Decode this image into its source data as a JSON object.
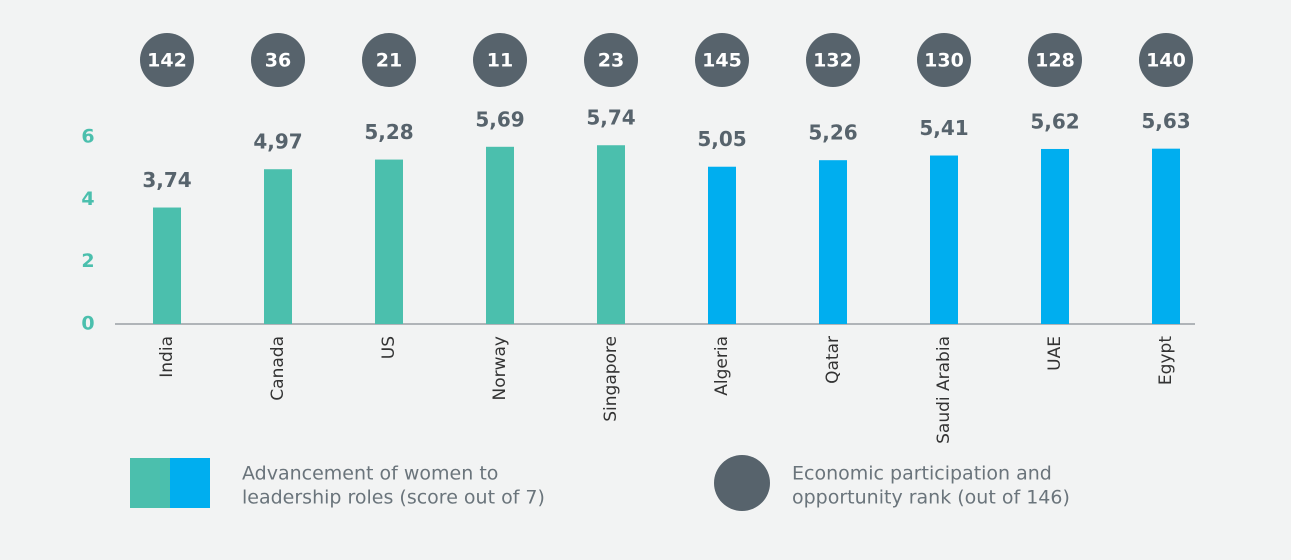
{
  "chart_data": {
    "type": "bar",
    "categories": [
      "India",
      "Canada",
      "US",
      "Norway",
      "Singapore",
      "Algeria",
      "Qatar",
      "Saudi Arabia",
      "UAE",
      "Egypt"
    ],
    "values": [
      3.74,
      4.97,
      5.28,
      5.69,
      5.74,
      5.05,
      5.26,
      5.41,
      5.62,
      5.63
    ],
    "value_labels": [
      "3,74",
      "4,97",
      "5,28",
      "5,69",
      "5,74",
      "5,05",
      "5,26",
      "5,41",
      "5,62",
      "5,63"
    ],
    "colors": [
      "#4bbfad",
      "#4bbfad",
      "#4bbfad",
      "#4bbfad",
      "#4bbfad",
      "#00aeef",
      "#00aeef",
      "#00aeef",
      "#00aeef",
      "#00aeef"
    ],
    "ranks": [
      142,
      36,
      21,
      11,
      23,
      145,
      132,
      130,
      128,
      140
    ],
    "rank_color": "#57636c",
    "ylim": [
      0,
      7
    ],
    "yticks": [
      0,
      2,
      4,
      6
    ],
    "legend": [
      {
        "lines": [
          "Advancement of women to",
          "leadership roles (score out of 7)"
        ],
        "colors": [
          "#4bbfad",
          "#00aeef"
        ]
      },
      {
        "lines": [
          "Economic participation and",
          "opportunity rank (out of 146)"
        ],
        "colors": [
          "#57636c"
        ]
      }
    ]
  }
}
